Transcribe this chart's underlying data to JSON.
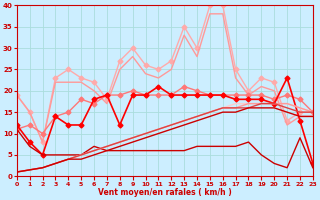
{
  "xlabel": "Vent moyen/en rafales ( km/h )",
  "xlim": [
    0,
    23
  ],
  "ylim": [
    0,
    40
  ],
  "yticks": [
    0,
    5,
    10,
    15,
    20,
    25,
    30,
    35,
    40
  ],
  "xticks": [
    0,
    1,
    2,
    3,
    4,
    5,
    6,
    7,
    8,
    9,
    10,
    11,
    12,
    13,
    14,
    15,
    16,
    17,
    18,
    19,
    20,
    21,
    22,
    23
  ],
  "background_color": "#cceeff",
  "grid_color": "#aadddd",
  "lines": [
    {
      "y": [
        19,
        15,
        8,
        23,
        25,
        23,
        22,
        18,
        27,
        30,
        26,
        25,
        27,
        35,
        30,
        40,
        40,
        25,
        20,
        23,
        22,
        13,
        15,
        15
      ],
      "color": "#ffaaaa",
      "lw": 1.0,
      "marker": "D",
      "ms": 2.5
    },
    {
      "y": [
        19,
        15,
        8,
        22,
        22,
        22,
        20,
        17,
        25,
        28,
        24,
        23,
        25,
        33,
        28,
        38,
        38,
        23,
        19,
        21,
        20,
        12,
        14,
        14
      ],
      "color": "#ff9999",
      "lw": 1.0,
      "marker": null,
      "ms": 0
    },
    {
      "y": [
        11,
        12,
        10,
        14,
        15,
        18,
        17,
        19,
        19,
        20,
        19,
        19,
        19,
        21,
        20,
        19,
        19,
        19,
        19,
        19,
        18,
        19,
        18,
        15
      ],
      "color": "#ff7777",
      "lw": 1.0,
      "marker": "D",
      "ms": 2.5
    },
    {
      "y": [
        12,
        8,
        5,
        14,
        12,
        12,
        18,
        19,
        12,
        19,
        19,
        21,
        19,
        19,
        19,
        19,
        19,
        18,
        18,
        18,
        17,
        23,
        13,
        3
      ],
      "color": "#ff0000",
      "lw": 1.2,
      "marker": "D",
      "ms": 2.5
    },
    {
      "y": [
        11,
        7,
        5,
        5,
        5,
        5,
        7,
        6,
        6,
        6,
        6,
        6,
        6,
        6,
        7,
        7,
        7,
        7,
        8,
        5,
        3,
        2,
        9,
        2
      ],
      "color": "#cc0000",
      "lw": 1.0,
      "marker": null,
      "ms": 0
    },
    {
      "y": [
        1,
        1.5,
        2,
        3,
        4,
        5,
        6,
        7,
        8,
        9,
        10,
        11,
        12,
        13,
        14,
        15,
        16,
        17,
        17,
        17,
        17,
        17,
        16,
        15
      ],
      "color": "#ffcccc",
      "lw": 1.0,
      "marker": null,
      "ms": 0
    },
    {
      "y": [
        1,
        1.5,
        2,
        3,
        4,
        5,
        6,
        7,
        8,
        9,
        10,
        11,
        12,
        13,
        14,
        15,
        16,
        16,
        17,
        17,
        17,
        17,
        16,
        15
      ],
      "color": "#ff9999",
      "lw": 1.0,
      "marker": null,
      "ms": 0
    },
    {
      "y": [
        1,
        1.5,
        2,
        3,
        4,
        5,
        6,
        7,
        8,
        9,
        10,
        11,
        12,
        13,
        14,
        15,
        16,
        16,
        16,
        17,
        17,
        16,
        15,
        15
      ],
      "color": "#dd4444",
      "lw": 1.0,
      "marker": null,
      "ms": 0
    },
    {
      "y": [
        1,
        1.5,
        2,
        3,
        4,
        4,
        5,
        6,
        7,
        8,
        9,
        10,
        11,
        12,
        13,
        14,
        15,
        15,
        16,
        16,
        16,
        15,
        14,
        14
      ],
      "color": "#cc0000",
      "lw": 1.0,
      "marker": null,
      "ms": 0
    }
  ]
}
